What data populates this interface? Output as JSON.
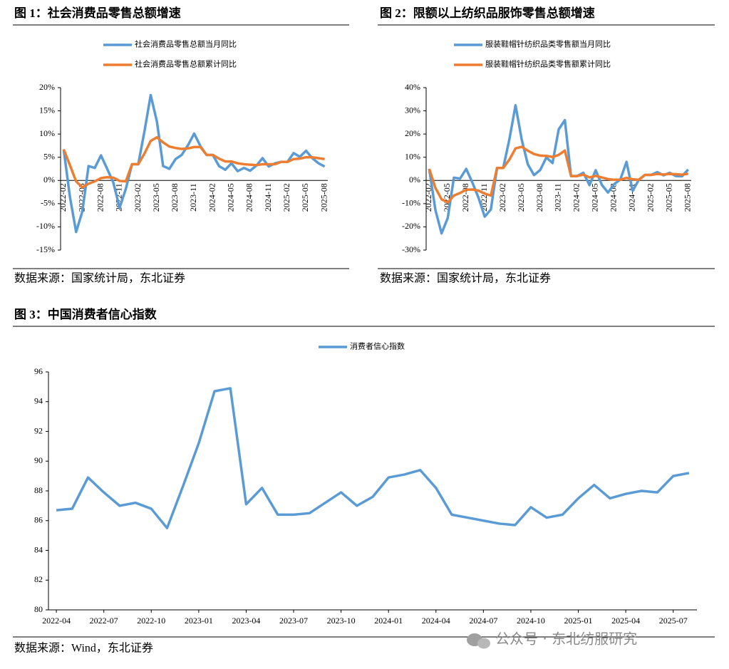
{
  "chart_data": [
    {
      "type": "line",
      "title": "图 1：社会消费品零售总额增速",
      "source": "数据来源：国家统计局，东北证券",
      "categories": [
        "2022-02",
        null,
        null,
        "2022-05",
        null,
        null,
        "2022-08",
        null,
        null,
        "2022-11",
        null,
        null,
        "2023-02",
        null,
        null,
        "2023-05",
        null,
        null,
        "2023-08",
        null,
        null,
        "2023-11",
        null,
        null,
        "2024-02",
        null,
        null,
        "2024-05",
        null,
        null,
        "2024-08",
        null,
        null,
        "2024-11",
        null,
        null,
        "2025-02",
        null,
        null,
        "2025-05",
        null,
        null,
        "2025-08"
      ],
      "series": [
        {
          "name": "社会消费品零售总额当月同比",
          "color": "#5b9bd5",
          "values": [
            6.7,
            -3.5,
            -11.1,
            -6.7,
            3.1,
            2.7,
            5.4,
            2.5,
            -0.5,
            -5.9,
            -1.8,
            3.5,
            3.5,
            10.6,
            18.4,
            12.7,
            3.1,
            2.5,
            4.6,
            5.5,
            7.6,
            10.1,
            7.4,
            5.5,
            5.5,
            3.1,
            2.3,
            3.7,
            2.0,
            2.7,
            2.1,
            3.2,
            4.8,
            3.0,
            3.7,
            4.0,
            4.0,
            5.9,
            5.1,
            6.4,
            4.8,
            3.7,
            3.0
          ]
        },
        {
          "name": "社会消费品零售总额累计同比",
          "color": "#ed7d31",
          "values": [
            6.7,
            3.3,
            -0.2,
            -1.5,
            -0.7,
            -0.2,
            0.5,
            0.7,
            0.6,
            -0.1,
            -0.2,
            3.5,
            3.5,
            5.8,
            8.5,
            9.3,
            8.2,
            7.3,
            7.0,
            6.8,
            6.9,
            7.2,
            7.2,
            5.5,
            5.5,
            4.7,
            4.1,
            4.1,
            3.7,
            3.5,
            3.4,
            3.3,
            3.5,
            3.5,
            3.5,
            4.0,
            4.0,
            4.6,
            4.7,
            5.0,
            5.0,
            4.8,
            4.6
          ]
        }
      ],
      "ylim": [
        -15,
        20
      ],
      "yticks": [
        {
          "value": -15,
          "label": "-15%"
        },
        {
          "value": -10,
          "label": "-10%"
        },
        {
          "value": -5,
          "label": "-5%"
        },
        {
          "value": 0,
          "label": "0%"
        },
        {
          "value": 5,
          "label": "5%"
        },
        {
          "value": 10,
          "label": "10%"
        },
        {
          "value": 15,
          "label": "15%"
        },
        {
          "value": 20,
          "label": "20%"
        }
      ],
      "grid": false
    },
    {
      "type": "line",
      "title": "图 2：限额以上纺织品服饰零售总额增速",
      "source": "数据来源：国家统计局，东北证券",
      "categories": [
        "2022-02",
        null,
        null,
        "2022-05",
        null,
        null,
        "2022-08",
        null,
        null,
        "2022-11",
        null,
        null,
        "2023-02",
        null,
        null,
        "2023-05",
        null,
        null,
        "2023-08",
        null,
        null,
        "2023-11",
        null,
        null,
        "2024-02",
        null,
        null,
        "2024-05",
        null,
        null,
        "2024-08",
        null,
        null,
        "2024-11",
        null,
        null,
        "2025-02",
        null,
        null,
        "2025-05",
        null,
        null,
        "2025-08"
      ],
      "series": [
        {
          "name": "服装鞋帽针纺织品类零售额当月同比",
          "color": "#5b9bd5",
          "values": [
            5.0,
            -12.7,
            -22.8,
            -16.2,
            1.2,
            0.8,
            5.0,
            -0.9,
            -7.5,
            -15.6,
            -12.5,
            5.4,
            5.4,
            17.7,
            32.4,
            17.6,
            6.9,
            2.3,
            4.5,
            9.9,
            7.5,
            22.0,
            26.0,
            1.9,
            1.9,
            3.3,
            -2.0,
            4.4,
            -1.9,
            -5.2,
            -1.6,
            0.4,
            8.0,
            -4.5,
            0.3,
            2.4,
            2.4,
            3.6,
            2.2,
            3.3,
            1.9,
            1.8,
            4.7
          ]
        },
        {
          "name": "服装鞋帽针纺织品类零售额累计同比",
          "color": "#ed7d31",
          "values": [
            5.0,
            -3.2,
            -8.1,
            -9.5,
            -6.5,
            -5.4,
            -4.0,
            -3.9,
            -4.4,
            -5.7,
            -6.5,
            5.4,
            5.4,
            9.0,
            13.8,
            14.5,
            12.8,
            11.4,
            10.7,
            10.6,
            10.1,
            11.0,
            12.9,
            1.9,
            1.9,
            2.5,
            1.3,
            2.0,
            1.3,
            0.6,
            0.3,
            0.3,
            1.1,
            0.5,
            0.3,
            2.4,
            2.4,
            2.8,
            2.6,
            2.8,
            2.7,
            2.5,
            2.9
          ]
        }
      ],
      "ylim": [
        -30,
        40
      ],
      "yticks": [
        {
          "value": -30,
          "label": "-30%"
        },
        {
          "value": -20,
          "label": "-20%"
        },
        {
          "value": -10,
          "label": "-10%"
        },
        {
          "value": 0,
          "label": "0%"
        },
        {
          "value": 10,
          "label": "10%"
        },
        {
          "value": 20,
          "label": "20%"
        },
        {
          "value": 30,
          "label": "30%"
        },
        {
          "value": 40,
          "label": "40%"
        }
      ],
      "grid": false
    },
    {
      "type": "line",
      "title": "图 3：中国消费者信心指数",
      "source": "数据来源：Wind，东北证券",
      "categories": [
        "2022-04",
        null,
        null,
        "2022-07",
        null,
        null,
        "2022-10",
        null,
        null,
        "2023-01",
        null,
        null,
        "2023-04",
        null,
        null,
        "2023-07",
        null,
        null,
        "2023-10",
        null,
        null,
        "2024-01",
        null,
        null,
        "2024-04",
        null,
        null,
        "2024-07",
        null,
        null,
        "2024-10",
        null,
        null,
        "2025-01",
        null,
        null,
        "2025-04",
        null,
        null,
        "2025-07",
        null
      ],
      "series": [
        {
          "name": "消费者信心指数",
          "color": "#5b9bd5",
          "values": [
            86.7,
            86.8,
            88.9,
            87.9,
            87.0,
            87.2,
            86.8,
            85.5,
            88.3,
            91.2,
            94.7,
            94.9,
            87.1,
            88.2,
            86.4,
            86.4,
            86.5,
            87.2,
            87.9,
            87.0,
            87.6,
            88.9,
            89.1,
            89.4,
            88.2,
            86.4,
            86.2,
            86.0,
            85.8,
            85.7,
            86.9,
            86.2,
            86.4,
            87.5,
            88.4,
            87.5,
            87.8,
            88.0,
            87.9,
            89.0,
            89.2
          ]
        }
      ],
      "ylim": [
        80,
        96
      ],
      "yticks": [
        80,
        82,
        84,
        86,
        88,
        90,
        92,
        94,
        96
      ],
      "grid": false
    }
  ],
  "watermark": "公众号 · 东北纺服研究"
}
